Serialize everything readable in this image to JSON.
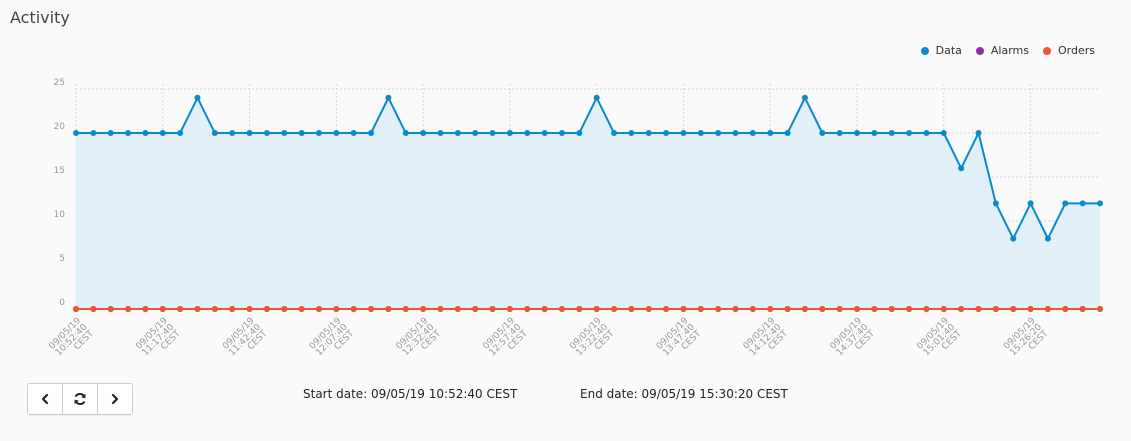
{
  "panel": {
    "title": "Activity"
  },
  "legend": [
    {
      "label": "Data",
      "color": "#0b8ac9"
    },
    {
      "label": "Alarms",
      "color": "#8e2fa6"
    },
    {
      "label": "Orders",
      "color": "#ee5533"
    }
  ],
  "controls": {
    "prev_icon": "chevron-left-icon",
    "refresh_icon": "refresh-icon",
    "next_icon": "chevron-right-icon"
  },
  "range": {
    "start_label": "Start date: 09/05/19 10:52:40 CEST",
    "end_label": "End date: 09/05/19 15:30:20 CEST"
  },
  "chart_data": {
    "type": "line",
    "ylim": [
      0,
      25
    ],
    "y_ticks": [
      0,
      5,
      10,
      15,
      20,
      25
    ],
    "x_tick_labels": [
      [
        "09/05/19",
        "10:52:40",
        "CEST"
      ],
      [
        "09/05/19",
        "11:17:40",
        "CEST"
      ],
      [
        "09/05/19",
        "11:42:40",
        "CEST"
      ],
      [
        "09/05/19",
        "12:07:40",
        "CEST"
      ],
      [
        "09/05/19",
        "12:32:40",
        "CEST"
      ],
      [
        "09/05/19",
        "12:57:40",
        "CEST"
      ],
      [
        "09/05/19",
        "13:22:40",
        "CEST"
      ],
      [
        "09/05/19",
        "13:47:40",
        "CEST"
      ],
      [
        "09/05/19",
        "14:12:40",
        "CEST"
      ],
      [
        "09/05/19",
        "14:37:40",
        "CEST"
      ],
      [
        "09/05/19",
        "15:01:40",
        "CEST"
      ],
      [
        "09/05/19",
        "15:26:20",
        "CEST"
      ]
    ],
    "grid": true,
    "legend_position": "top-right",
    "series": [
      {
        "name": "Data",
        "color": "#0b8ac9",
        "fill": "#e1f0f8",
        "values": [
          20,
          20,
          20,
          20,
          20,
          20,
          20,
          24,
          20,
          20,
          20,
          20,
          20,
          20,
          20,
          20,
          20,
          20,
          24,
          20,
          20,
          20,
          20,
          20,
          20,
          20,
          20,
          20,
          20,
          20,
          24,
          20,
          20,
          20,
          20,
          20,
          20,
          20,
          20,
          20,
          20,
          20,
          24,
          20,
          20,
          20,
          20,
          20,
          20,
          20,
          20,
          16,
          20,
          12,
          8,
          12,
          8,
          12,
          12,
          12
        ]
      },
      {
        "name": "Alarms",
        "color": "#8e2fa6",
        "values": [
          0,
          0,
          0,
          0,
          0,
          0,
          0,
          0,
          0,
          0,
          0,
          0,
          0,
          0,
          0,
          0,
          0,
          0,
          0,
          0,
          0,
          0,
          0,
          0,
          0,
          0,
          0,
          0,
          0,
          0,
          0,
          0,
          0,
          0,
          0,
          0,
          0,
          0,
          0,
          0,
          0,
          0,
          0,
          0,
          0,
          0,
          0,
          0,
          0,
          0,
          0,
          0,
          0,
          0,
          0,
          0,
          0,
          0,
          0,
          0
        ]
      },
      {
        "name": "Orders",
        "color": "#ee5533",
        "values": [
          0,
          0,
          0,
          0,
          0,
          0,
          0,
          0,
          0,
          0,
          0,
          0,
          0,
          0,
          0,
          0,
          0,
          0,
          0,
          0,
          0,
          0,
          0,
          0,
          0,
          0,
          0,
          0,
          0,
          0,
          0,
          0,
          0,
          0,
          0,
          0,
          0,
          0,
          0,
          0,
          0,
          0,
          0,
          0,
          0,
          0,
          0,
          0,
          0,
          0,
          0,
          0,
          0,
          0,
          0,
          0,
          0,
          0,
          0,
          0
        ]
      }
    ]
  }
}
